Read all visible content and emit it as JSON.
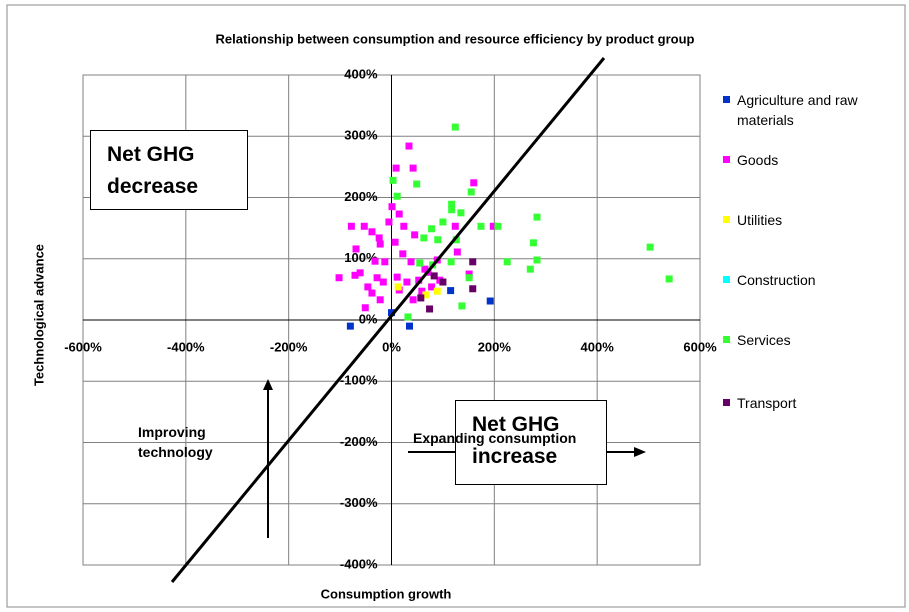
{
  "chart_data": {
    "type": "scatter",
    "title": "Relationship between consumption and resource efficiency by product group",
    "x_label": "Consumption growth",
    "y_label": "Technological advance",
    "xlim": [
      -600,
      600
    ],
    "ylim": [
      -400,
      400
    ],
    "xticks": [
      {
        "value": -600,
        "label": "-600%"
      },
      {
        "value": -400,
        "label": "-400%"
      },
      {
        "value": -200,
        "label": "-200%"
      },
      {
        "value": 0,
        "label": "0%"
      },
      {
        "value": 200,
        "label": "200%"
      },
      {
        "value": 400,
        "label": "400%"
      },
      {
        "value": 600,
        "label": "600%"
      }
    ],
    "yticks": [
      {
        "value": -400,
        "label": "-400%"
      },
      {
        "value": -300,
        "label": "-300%"
      },
      {
        "value": -200,
        "label": "-200%"
      },
      {
        "value": -100,
        "label": "-100%"
      },
      {
        "value": 0,
        "label": "0%"
      },
      {
        "value": 100,
        "label": "100%"
      },
      {
        "value": 200,
        "label": "200%"
      },
      {
        "value": 300,
        "label": "300%"
      },
      {
        "value": 400,
        "label": "400%"
      }
    ],
    "grid": true,
    "legend": "right",
    "annotations": [
      "Net GHG decrease",
      "Net GHG increase",
      "Improving technology",
      "Expanding consumption"
    ],
    "series": [
      {
        "name": "Agriculture and raw materials",
        "color": "#0033cc",
        "x": [
          -80,
          0,
          115,
          192,
          35
        ],
        "values": [
          -10,
          12,
          48,
          31,
          -10
        ]
      },
      {
        "name": "Goods",
        "color": "#ff00ff",
        "x": [
          9,
          34,
          42,
          -78,
          -53,
          -102,
          -69,
          -38,
          -22,
          1,
          15,
          -5,
          24,
          -32,
          -61,
          -46,
          -38,
          -22,
          -51,
          -13,
          7,
          22,
          38,
          53,
          71,
          89,
          94,
          30,
          42,
          59,
          78,
          124,
          160,
          151,
          128,
          198,
          -16,
          -71,
          -28,
          15,
          45,
          65,
          -24,
          11
        ],
        "values": [
          248,
          284,
          248,
          153,
          153,
          69,
          116,
          144,
          124,
          185,
          173,
          160,
          153,
          96,
          77,
          54,
          44,
          33,
          20,
          95,
          127,
          108,
          95,
          65,
          78,
          98,
          65,
          62,
          33,
          47,
          54,
          153,
          224,
          75,
          111,
          153,
          62,
          73,
          69,
          49,
          139,
          83,
          134,
          70
        ]
      },
      {
        "name": "Utilities",
        "color": "#ffff00",
        "x": [
          13,
          67,
          89
        ],
        "values": [
          54,
          41,
          47
        ]
      },
      {
        "name": "Construction",
        "color": "#00ffff",
        "x": [],
        "values": []
      },
      {
        "name": "Services",
        "color": "#33ff33",
        "x": [
          124,
          155,
          49,
          3,
          11,
          117,
          117,
          135,
          100,
          78,
          63,
          90,
          207,
          174,
          283,
          276,
          283,
          225,
          270,
          503,
          540,
          137,
          32,
          151,
          116,
          80,
          55,
          126
        ],
        "values": [
          315,
          209,
          222,
          228,
          202,
          189,
          180,
          175,
          160,
          149,
          134,
          131,
          153,
          153,
          168,
          126,
          98,
          95,
          83,
          119,
          67,
          23,
          5,
          69,
          95,
          90,
          93,
          131
        ]
      },
      {
        "name": "Transport",
        "color": "#660066",
        "x": [
          83,
          100,
          158,
          158,
          74,
          57
        ],
        "values": [
          72,
          62,
          51,
          95,
          18,
          36
        ]
      }
    ]
  }
}
